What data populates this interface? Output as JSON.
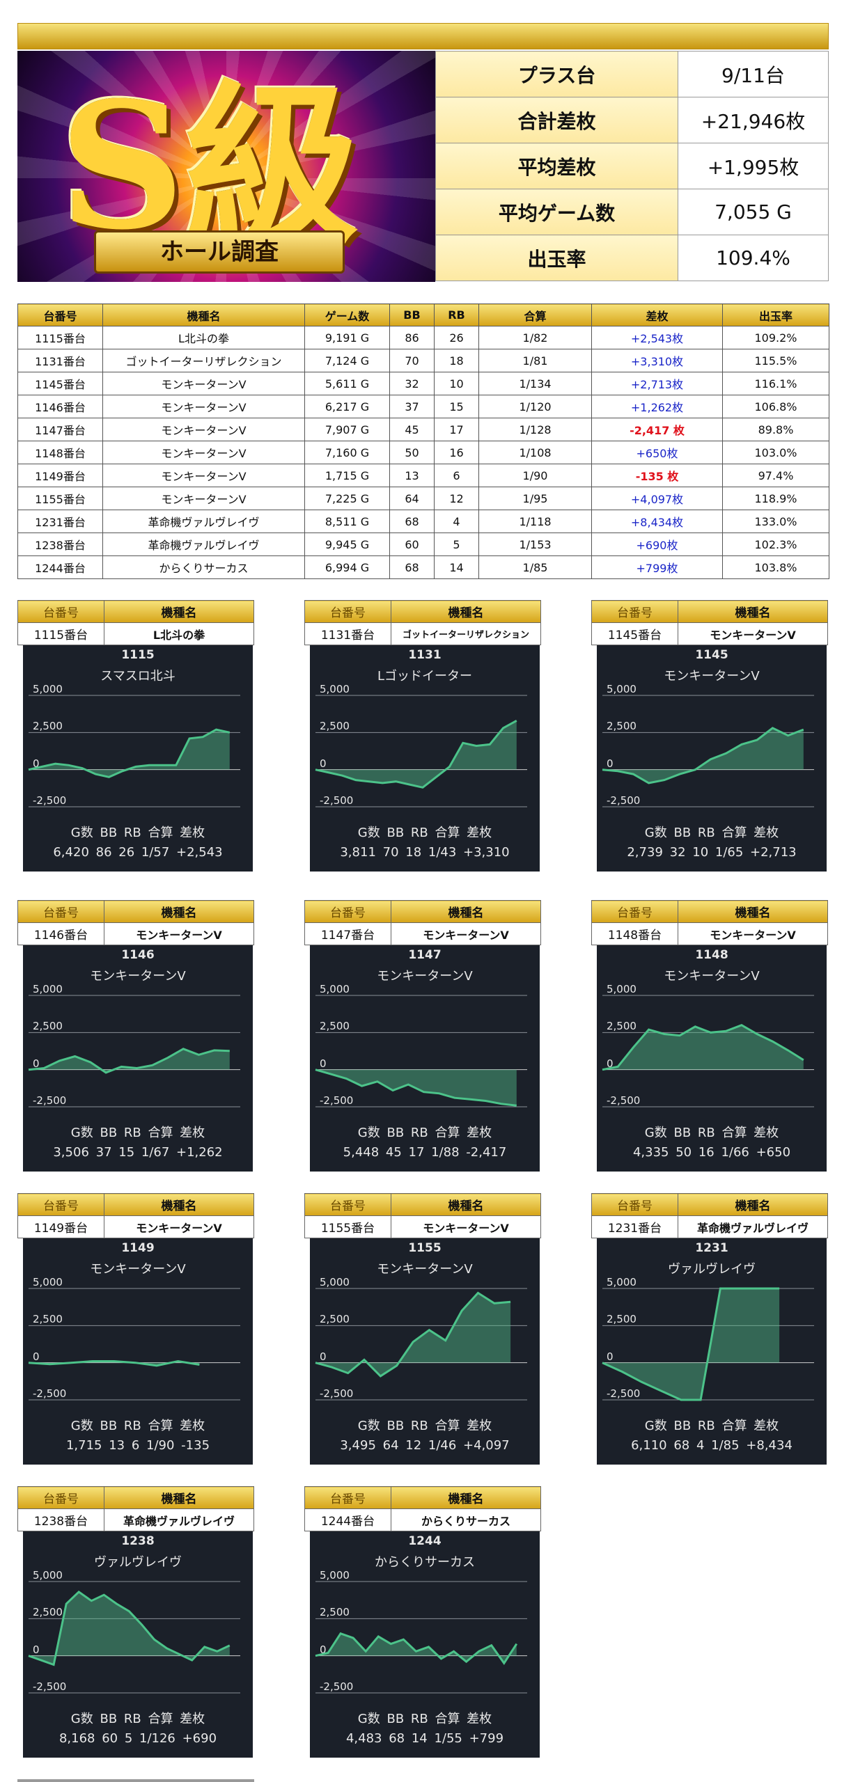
{
  "banner": {
    "logo_text": "S級",
    "ribbon_text": "ホール調査"
  },
  "summary": [
    {
      "key": "プラス台",
      "value": "9/11台"
    },
    {
      "key": "合計差枚",
      "value": "+21,946枚"
    },
    {
      "key": "平均差枚",
      "value": "+1,995枚"
    },
    {
      "key": "平均ゲーム数",
      "value": "7,055 G"
    },
    {
      "key": "出玉率",
      "value": "109.4%"
    }
  ],
  "table": {
    "headers": [
      "台番号",
      "機種名",
      "ゲーム数",
      "BB",
      "RB",
      "合算",
      "差枚",
      "出玉率"
    ],
    "rows": [
      [
        "1115番台",
        "L北斗の拳",
        "9,191 G",
        "86",
        "26",
        "1/82",
        "+2,543枚",
        "109.2%"
      ],
      [
        "1131番台",
        "ゴットイーターリザレクション",
        "7,124 G",
        "70",
        "18",
        "1/81",
        "+3,310枚",
        "115.5%"
      ],
      [
        "1145番台",
        "モンキーターンV",
        "5,611 G",
        "32",
        "10",
        "1/134",
        "+2,713枚",
        "116.1%"
      ],
      [
        "1146番台",
        "モンキーターンV",
        "6,217 G",
        "37",
        "15",
        "1/120",
        "+1,262枚",
        "106.8%"
      ],
      [
        "1147番台",
        "モンキーターンV",
        "7,907 G",
        "45",
        "17",
        "1/128",
        "-2,417 枚",
        "89.8%"
      ],
      [
        "1148番台",
        "モンキーターンV",
        "7,160 G",
        "50",
        "16",
        "1/108",
        "+650枚",
        "103.0%"
      ],
      [
        "1149番台",
        "モンキーターンV",
        "1,715 G",
        "13",
        "6",
        "1/90",
        "-135 枚",
        "97.4%"
      ],
      [
        "1155番台",
        "モンキーターンV",
        "7,225 G",
        "64",
        "12",
        "1/95",
        "+4,097枚",
        "118.9%"
      ],
      [
        "1231番台",
        "革命機ヴァルヴレイヴ",
        "8,511 G",
        "68",
        "4",
        "1/118",
        "+8,434枚",
        "133.0%"
      ],
      [
        "1238番台",
        "革命機ヴァルヴレイヴ",
        "9,945 G",
        "60",
        "5",
        "1/153",
        "+690枚",
        "102.3%"
      ],
      [
        "1244番台",
        "からくりサーカス",
        "6,994 G",
        "68",
        "14",
        "1/85",
        "+799枚",
        "103.8%"
      ]
    ]
  },
  "card_labels": {
    "num": "台番号",
    "model": "機種名"
  },
  "chart_labels": {
    "y5000": "5,000",
    "y2500": "2,500",
    "y0": "0",
    "ym2500": "-2,500",
    "stats_header": "G数 BB RB 合算 差枚"
  },
  "chart_data": [
    {
      "type": "area",
      "id": "1115",
      "name": "スマスロ北斗",
      "card_num": "1115番台",
      "card_model": "L北斗の拳",
      "stats": "6,420 86 26 1/57 +2,543",
      "ylim": [
        -2500,
        5000
      ],
      "values": [
        0,
        200,
        400,
        300,
        100,
        -300,
        -500,
        -100,
        200,
        300,
        300,
        300,
        2100,
        2200,
        2700,
        2500
      ]
    },
    {
      "type": "area",
      "id": "1131",
      "name": "Lゴッドイーター",
      "card_num": "1131番台",
      "card_model": "ゴットイーターリザレクション",
      "stats": "3,811 70 18 1/43 +3,310",
      "ylim": [
        -2500,
        5000
      ],
      "values": [
        0,
        -200,
        -400,
        -700,
        -800,
        -900,
        -800,
        -1000,
        -1200,
        -500,
        200,
        1800,
        1600,
        1700,
        2800,
        3300
      ]
    },
    {
      "type": "area",
      "id": "1145",
      "name": "モンキーターンV",
      "card_num": "1145番台",
      "card_model": "モンキーターンV",
      "stats": "2,739 32 10 1/65 +2,713",
      "ylim": [
        -2500,
        5000
      ],
      "values": [
        0,
        -100,
        -300,
        -900,
        -700,
        -300,
        0,
        700,
        1100,
        1700,
        2000,
        2800,
        2300,
        2700
      ]
    },
    {
      "type": "area",
      "id": "1146",
      "name": "モンキーターンV",
      "card_num": "1146番台",
      "card_model": "モンキーターンV",
      "stats": "3,506 37 15 1/67 +1,262",
      "ylim": [
        -2500,
        5000
      ],
      "values": [
        0,
        100,
        600,
        900,
        500,
        -200,
        200,
        100,
        300,
        800,
        1400,
        1000,
        1300,
        1262
      ]
    },
    {
      "type": "area",
      "id": "1147",
      "name": "モンキーターンV",
      "card_num": "1147番台",
      "card_model": "モンキーターンV",
      "stats": "5,448 45 17 1/88 -2,417",
      "ylim": [
        -2500,
        5000
      ],
      "values": [
        0,
        -300,
        -600,
        -1100,
        -800,
        -1400,
        -1000,
        -1500,
        -1600,
        -1900,
        -2000,
        -2100,
        -2300,
        -2417
      ]
    },
    {
      "type": "area",
      "id": "1148",
      "name": "モンキーターンV",
      "card_num": "1148番台",
      "card_model": "モンキーターンV",
      "stats": "4,335 50 16 1/66 +650",
      "ylim": [
        -2500,
        5000
      ],
      "values": [
        0,
        200,
        1500,
        2700,
        2400,
        2300,
        2900,
        2500,
        2600,
        3000,
        2400,
        1900,
        1300,
        650
      ]
    },
    {
      "type": "area",
      "id": "1149",
      "name": "モンキーターンV",
      "card_num": "1149番台",
      "card_model": "モンキーターンV",
      "stats": "1,715 13 6 1/90 -135",
      "ylim": [
        -2500,
        5000
      ],
      "values": [
        0,
        -100,
        0,
        100,
        100,
        0,
        -200,
        100,
        -135
      ]
    },
    {
      "type": "area",
      "id": "1155",
      "name": "モンキーターンV",
      "card_num": "1155番台",
      "card_model": "モンキーターンV",
      "stats": "3,495 64 12 1/46 +4,097",
      "ylim": [
        -2500,
        5000
      ],
      "values": [
        0,
        -300,
        -700,
        200,
        -900,
        -200,
        1400,
        2200,
        1500,
        3500,
        4700,
        4000,
        4097
      ]
    },
    {
      "type": "area",
      "id": "1231",
      "name": "ヴァルヴレイヴ",
      "card_num": "1231番台",
      "card_model": "革命機ヴァルヴレイヴ",
      "stats": "6,110 68 4 1/85 +8,434",
      "ylim": [
        -2500,
        5000
      ],
      "values": [
        0,
        -600,
        -1300,
        -1900,
        -2500,
        -2500,
        5000,
        5000,
        5000,
        5000
      ]
    },
    {
      "type": "area",
      "id": "1238",
      "name": "ヴァルヴレイヴ",
      "card_num": "1238番台",
      "card_model": "革命機ヴァルヴレイヴ",
      "stats": "8,168 60 5 1/126 +690",
      "ylim": [
        -2500,
        5000
      ],
      "values": [
        0,
        -300,
        -600,
        3500,
        4300,
        3700,
        4100,
        3500,
        3000,
        2100,
        1100,
        500,
        100,
        -300,
        600,
        300,
        690
      ]
    },
    {
      "type": "area",
      "id": "1244",
      "name": "からくりサーカス",
      "card_num": "1244番台",
      "card_model": "からくりサーカス",
      "stats": "4,483 68 14 1/55 +799",
      "ylim": [
        -2500,
        5000
      ],
      "values": [
        0,
        200,
        1500,
        1200,
        300,
        1300,
        800,
        1100,
        300,
        600,
        -200,
        300,
        -400,
        300,
        700,
        -500,
        800
      ]
    }
  ]
}
